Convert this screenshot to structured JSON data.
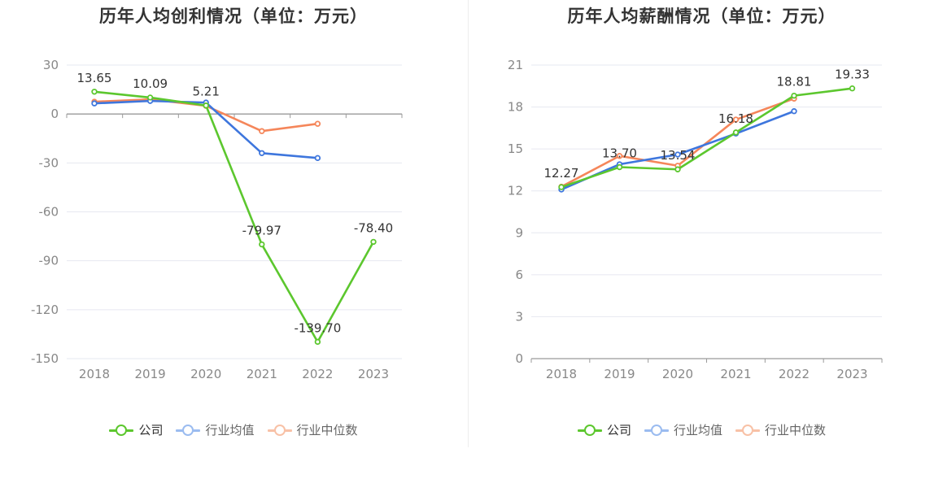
{
  "charts": [
    {
      "title": "历年人均创利情况（单位：万元）",
      "chart_data": {
        "type": "line",
        "title": "历年人均创利情况（单位：万元）",
        "categories": [
          "2018",
          "2019",
          "2020",
          "2021",
          "2022",
          "2023"
        ],
        "ylim": [
          -150,
          30
        ],
        "yticks": [
          30,
          0,
          -30,
          -60,
          -90,
          -120,
          -150
        ],
        "series": [
          {
            "name": "公司",
            "color": "#5cc72e",
            "values": [
              13.65,
              10.09,
              5.21,
              -79.97,
              -139.7,
              -78.4
            ],
            "labels": [
              "13.65",
              "10.09",
              "5.21",
              "-79.97",
              "-139.70",
              "-78.40"
            ]
          },
          {
            "name": "行业均值",
            "color": "#3e76dd",
            "values": [
              6.5,
              8.0,
              7.0,
              -24.0,
              -27.0,
              null
            ]
          },
          {
            "name": "行业中位数",
            "color": "#f5865a",
            "values": [
              7.5,
              9.0,
              5.0,
              -10.5,
              -6.0,
              null
            ]
          }
        ]
      }
    },
    {
      "title": "历年人均薪酬情况（单位：万元）",
      "chart_data": {
        "type": "line",
        "title": "历年人均薪酬情况（单位：万元）",
        "categories": [
          "2018",
          "2019",
          "2020",
          "2021",
          "2022",
          "2023"
        ],
        "ylim": [
          0,
          21
        ],
        "yticks": [
          21,
          18,
          15,
          12,
          9,
          6,
          3,
          0
        ],
        "series": [
          {
            "name": "公司",
            "color": "#5cc72e",
            "values": [
              12.27,
              13.7,
              13.54,
              16.18,
              18.81,
              19.33
            ],
            "labels": [
              "12.27",
              "13.70",
              "13.54",
              "16.18",
              "18.81",
              "19.33"
            ]
          },
          {
            "name": "行业均值",
            "color": "#3e76dd",
            "values": [
              12.1,
              13.9,
              14.6,
              16.1,
              17.7,
              null
            ]
          },
          {
            "name": "行业中位数",
            "color": "#f5865a",
            "values": [
              12.3,
              14.5,
              13.8,
              17.1,
              18.6,
              null
            ]
          }
        ]
      }
    }
  ],
  "legend": [
    {
      "label": "公司",
      "color": "#5cc72e",
      "fade": "#5cc72e"
    },
    {
      "label": "行业均值",
      "color": "#3e76dd",
      "fade": "#9bbcf0"
    },
    {
      "label": "行业中位数",
      "color": "#f5865a",
      "fade": "#f8c1a6"
    }
  ]
}
